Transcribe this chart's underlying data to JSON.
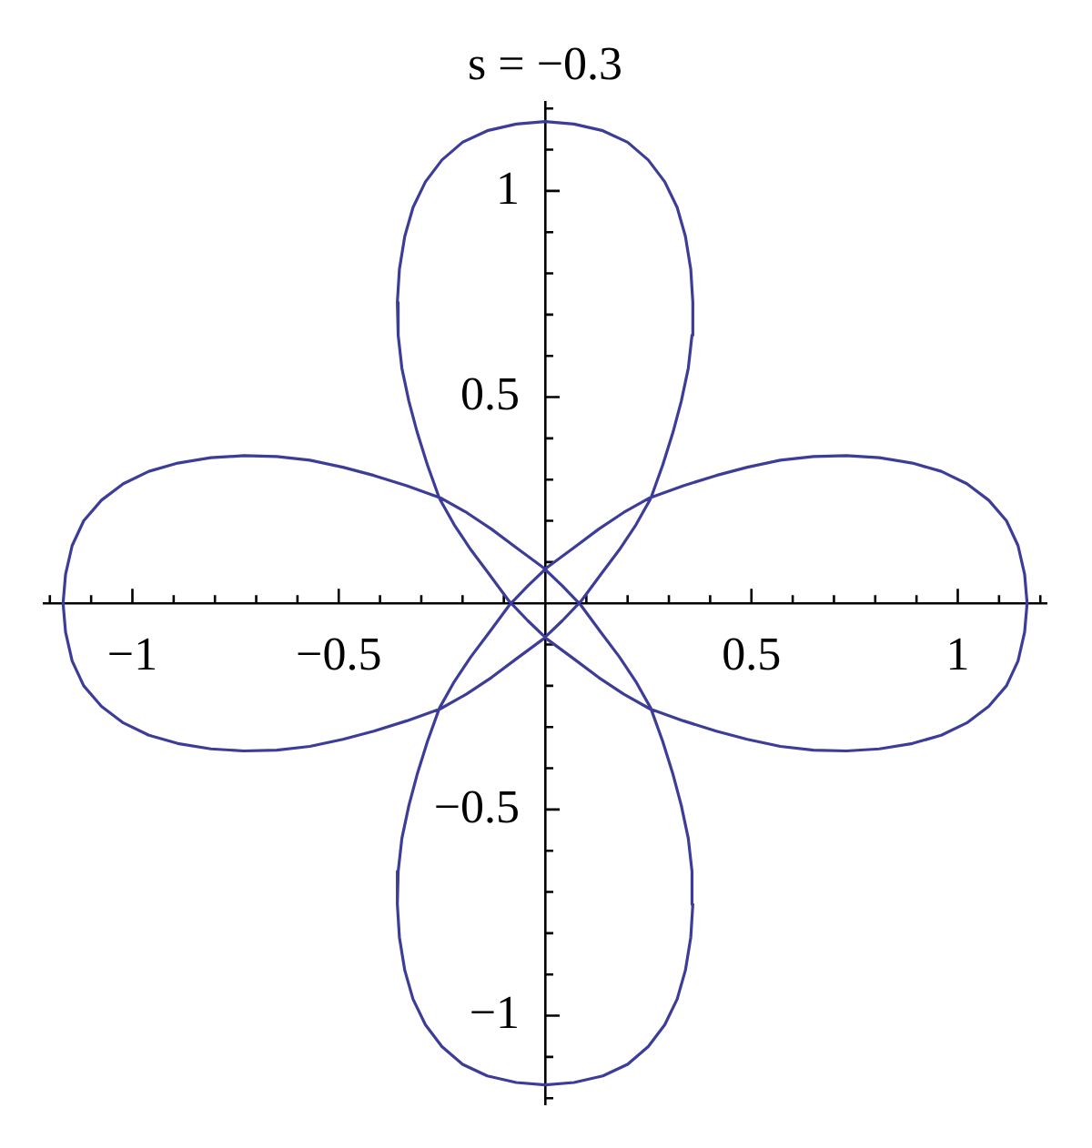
{
  "chart_data": {
    "type": "line",
    "title": "s = −0.3",
    "series": [
      {
        "color": "#3d3d99",
        "x": [
          0.358,
          0.353,
          0.34,
          0.32,
          0.29,
          0.25,
          0.2,
          0.14,
          0.07,
          0,
          -0.07,
          -0.14,
          -0.2,
          -0.25,
          -0.29,
          -0.32,
          -0.34,
          -0.353,
          -0.358,
          null,
          -0.358,
          -0.356,
          -0.347,
          -0.33,
          -0.31,
          -0.285,
          -0.256,
          -0.22,
          -0.18,
          -0.135,
          -0.087,
          -0.042,
          0.005,
          0.07,
          0.13,
          0.19,
          0.254,
          0.335,
          0.415,
          0.49,
          0.57,
          0.65,
          0.73,
          0.81,
          0.89,
          0.96,
          1.022,
          1.075,
          1.118,
          1.146,
          1.162,
          1.168,
          null,
          1.168,
          1.162,
          1.146,
          1.118,
          1.075,
          1.022,
          0.96,
          0.89,
          0.81,
          0.73,
          0.65,
          0.57,
          0.49,
          0.415,
          0.335,
          0.254,
          0.19,
          0.13,
          0.07,
          0.005,
          -0.042,
          -0.087,
          -0.135,
          -0.18,
          -0.22,
          -0.256,
          -0.285,
          -0.31,
          -0.33,
          -0.347,
          -0.356,
          -0.358,
          null,
          -0.358,
          -0.353,
          -0.34,
          -0.32,
          -0.29,
          -0.25,
          -0.2,
          -0.14,
          -0.07,
          0,
          0.07,
          0.14,
          0.2,
          0.25,
          0.29,
          0.32,
          0.34,
          0.353,
          0.358,
          null,
          0.358,
          0.356,
          0.347,
          0.33,
          0.31,
          0.285,
          0.256,
          0.22,
          0.18,
          0.135,
          0.087,
          0.042,
          -0.005,
          -0.07,
          -0.13,
          -0.19,
          -0.254,
          -0.335,
          -0.415,
          -0.49,
          -0.57,
          -0.65,
          -0.73,
          -0.81,
          -0.89,
          -0.96,
          -1.022,
          -1.075,
          -1.118,
          -1.146,
          -1.162,
          -1.168,
          null,
          -1.168,
          -1.162,
          -1.146,
          -1.118,
          -1.075,
          -1.022,
          -0.96,
          -0.89,
          -0.81,
          -0.73,
          -0.65,
          -0.57,
          -0.49,
          -0.415,
          -0.335,
          -0.254,
          -0.19,
          -0.13,
          -0.07,
          -0.005,
          0.042,
          0.087,
          0.135,
          0.18,
          0.22,
          0.256,
          0.285,
          0.31,
          0.33,
          0.347,
          0.356,
          0.358
        ],
        "values": [
          0.73,
          0.81,
          0.89,
          0.96,
          1.022,
          1.075,
          1.118,
          1.146,
          1.162,
          1.168,
          1.162,
          1.146,
          1.118,
          1.075,
          1.022,
          0.96,
          0.89,
          0.81,
          0.73,
          null,
          0.73,
          0.65,
          0.57,
          0.49,
          0.415,
          0.335,
          0.254,
          0.19,
          0.13,
          0.07,
          0.005,
          -0.042,
          -0.087,
          -0.135,
          -0.18,
          -0.22,
          -0.256,
          -0.285,
          -0.31,
          -0.33,
          -0.347,
          -0.356,
          -0.358,
          -0.353,
          -0.34,
          -0.32,
          -0.29,
          -0.25,
          -0.2,
          -0.14,
          -0.07,
          0,
          null,
          0,
          0.07,
          0.14,
          0.2,
          0.25,
          0.29,
          0.32,
          0.34,
          0.353,
          0.358,
          0.356,
          0.347,
          0.33,
          0.31,
          0.285,
          0.256,
          0.22,
          0.18,
          0.135,
          0.087,
          0.042,
          -0.005,
          -0.07,
          -0.13,
          -0.19,
          -0.254,
          -0.335,
          -0.415,
          -0.49,
          -0.57,
          -0.65,
          -0.73,
          null,
          -0.73,
          -0.81,
          -0.89,
          -0.96,
          -1.022,
          -1.075,
          -1.118,
          -1.146,
          -1.162,
          -1.168,
          -1.162,
          -1.146,
          -1.118,
          -1.075,
          -1.022,
          -0.96,
          -0.89,
          -0.81,
          -0.73,
          null,
          -0.73,
          -0.65,
          -0.57,
          -0.49,
          -0.415,
          -0.335,
          -0.254,
          -0.19,
          -0.13,
          -0.07,
          -0.005,
          0.042,
          0.087,
          0.135,
          0.18,
          0.22,
          0.256,
          0.285,
          0.31,
          0.33,
          0.347,
          0.356,
          0.358,
          0.353,
          0.34,
          0.32,
          0.29,
          0.25,
          0.2,
          0.14,
          0.07,
          0,
          null,
          0,
          -0.07,
          -0.14,
          -0.2,
          -0.25,
          -0.29,
          -0.32,
          -0.34,
          -0.353,
          -0.358,
          -0.356,
          -0.347,
          -0.33,
          -0.31,
          -0.285,
          -0.256,
          -0.22,
          -0.18,
          -0.135,
          -0.087,
          -0.042,
          0.005,
          0.07,
          0.13,
          0.19,
          0.254,
          0.335,
          0.415,
          0.49,
          0.57,
          0.65,
          0.73
        ]
      }
    ],
    "xlim": [
      -1.215,
      1.215
    ],
    "ylim": [
      -1.215,
      1.215
    ],
    "xticks": [
      {
        "value": -1.2,
        "label": null
      },
      {
        "value": -1.1,
        "label": null
      },
      {
        "value": -1,
        "label": "−1"
      },
      {
        "value": -0.9,
        "label": null
      },
      {
        "value": -0.8,
        "label": null
      },
      {
        "value": -0.7,
        "label": null
      },
      {
        "value": -0.6,
        "label": null
      },
      {
        "value": -0.5,
        "label": "−0.5"
      },
      {
        "value": -0.4,
        "label": null
      },
      {
        "value": -0.3,
        "label": null
      },
      {
        "value": -0.2,
        "label": null
      },
      {
        "value": -0.1,
        "label": null
      },
      {
        "value": 0.1,
        "label": null
      },
      {
        "value": 0.2,
        "label": null
      },
      {
        "value": 0.3,
        "label": null
      },
      {
        "value": 0.4,
        "label": null
      },
      0.5,
      {
        "value": 0.6,
        "label": null
      },
      {
        "value": 0.7,
        "label": null
      },
      {
        "value": 0.8,
        "label": null
      },
      {
        "value": 0.9,
        "label": null
      },
      1,
      {
        "value": 1.1,
        "label": null
      },
      {
        "value": 1.2,
        "label": null
      }
    ],
    "yticks": [
      {
        "value": -1.2,
        "label": null
      },
      {
        "value": -1.1,
        "label": null
      },
      {
        "value": -1,
        "label": "−1"
      },
      {
        "value": -0.9,
        "label": null
      },
      {
        "value": -0.8,
        "label": null
      },
      {
        "value": -0.7,
        "label": null
      },
      {
        "value": -0.6,
        "label": null
      },
      {
        "value": -0.5,
        "label": "−0.5"
      },
      {
        "value": -0.4,
        "label": null
      },
      {
        "value": -0.3,
        "label": null
      },
      {
        "value": -0.2,
        "label": null
      },
      {
        "value": -0.1,
        "label": null
      },
      {
        "value": 0.1,
        "label": null
      },
      {
        "value": 0.2,
        "label": null
      },
      {
        "value": 0.3,
        "label": null
      },
      {
        "value": 0.4,
        "label": null
      },
      0.5,
      {
        "value": 0.6,
        "label": null
      },
      {
        "value": 0.7,
        "label": null
      },
      {
        "value": 0.8,
        "label": null
      },
      {
        "value": 0.9,
        "label": null
      },
      1,
      {
        "value": 1.1,
        "label": null
      },
      {
        "value": 1.2,
        "label": null
      }
    ]
  }
}
